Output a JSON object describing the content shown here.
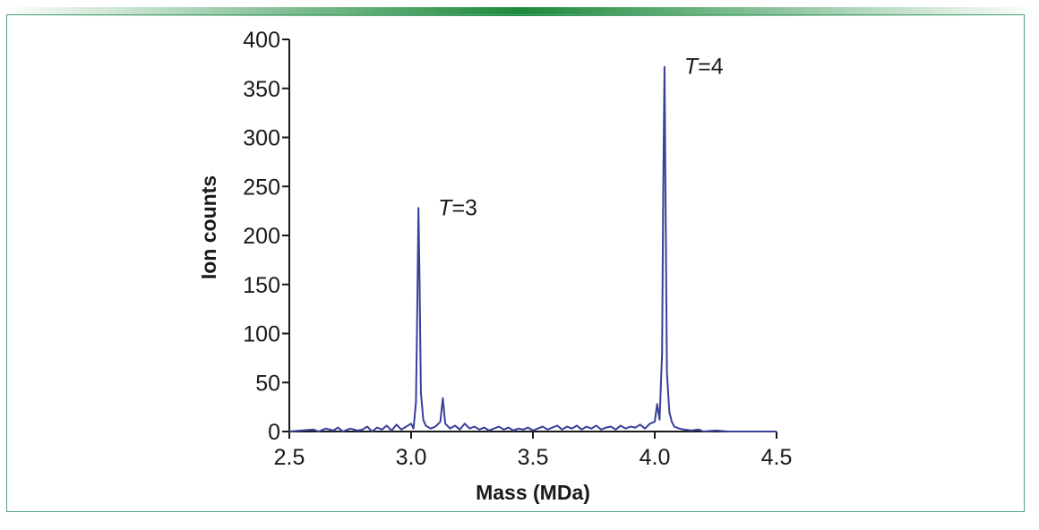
{
  "colors": {
    "frame": "#4fa37a",
    "top_bar_center": "#1e8a3c",
    "top_bar_edge": "#ffffff",
    "series": "#3a3f9a",
    "axis": "#1a1a1a"
  },
  "chart_data": {
    "type": "line",
    "title": "",
    "xlabel": "Mass (MDa)",
    "ylabel": "Ion counts",
    "xlim": [
      2.5,
      4.5
    ],
    "ylim": [
      0,
      400
    ],
    "xticks": [
      "2.5",
      "3.0",
      "3.5",
      "4.0",
      "4.5"
    ],
    "yticks": [
      "0",
      "50",
      "100",
      "150",
      "200",
      "250",
      "300",
      "350",
      "400"
    ],
    "grid": false,
    "legend": "none",
    "annotations": [
      {
        "label_italic": "T",
        "label_rest": "=3",
        "x": 3.03,
        "y": 228
      },
      {
        "label_italic": "T",
        "label_rest": "=4",
        "x": 4.04,
        "y": 372
      }
    ],
    "series": [
      {
        "values_xy": [
          [
            2.5,
            0
          ],
          [
            2.55,
            1
          ],
          [
            2.6,
            2
          ],
          [
            2.62,
            0
          ],
          [
            2.65,
            3
          ],
          [
            2.68,
            1
          ],
          [
            2.7,
            4
          ],
          [
            2.72,
            0
          ],
          [
            2.75,
            3
          ],
          [
            2.78,
            1
          ],
          [
            2.8,
            2
          ],
          [
            2.82,
            5
          ],
          [
            2.84,
            0
          ],
          [
            2.86,
            4
          ],
          [
            2.88,
            2
          ],
          [
            2.9,
            6
          ],
          [
            2.92,
            1
          ],
          [
            2.94,
            7
          ],
          [
            2.96,
            2
          ],
          [
            2.98,
            5
          ],
          [
            3.0,
            8
          ],
          [
            3.01,
            3
          ],
          [
            3.02,
            30
          ],
          [
            3.025,
            120
          ],
          [
            3.03,
            228
          ],
          [
            3.035,
            150
          ],
          [
            3.04,
            40
          ],
          [
            3.05,
            12
          ],
          [
            3.06,
            6
          ],
          [
            3.08,
            3
          ],
          [
            3.1,
            5
          ],
          [
            3.12,
            10
          ],
          [
            3.13,
            34
          ],
          [
            3.14,
            8
          ],
          [
            3.16,
            3
          ],
          [
            3.18,
            6
          ],
          [
            3.2,
            2
          ],
          [
            3.22,
            8
          ],
          [
            3.24,
            3
          ],
          [
            3.26,
            5
          ],
          [
            3.28,
            2
          ],
          [
            3.3,
            4
          ],
          [
            3.32,
            1
          ],
          [
            3.34,
            3
          ],
          [
            3.36,
            5
          ],
          [
            3.38,
            2
          ],
          [
            3.4,
            4
          ],
          [
            3.42,
            1
          ],
          [
            3.44,
            3
          ],
          [
            3.46,
            2
          ],
          [
            3.48,
            4
          ],
          [
            3.5,
            1
          ],
          [
            3.52,
            3
          ],
          [
            3.54,
            5
          ],
          [
            3.56,
            2
          ],
          [
            3.58,
            4
          ],
          [
            3.6,
            6
          ],
          [
            3.62,
            2
          ],
          [
            3.64,
            5
          ],
          [
            3.66,
            3
          ],
          [
            3.68,
            6
          ],
          [
            3.7,
            2
          ],
          [
            3.72,
            5
          ],
          [
            3.74,
            3
          ],
          [
            3.76,
            6
          ],
          [
            3.78,
            2
          ],
          [
            3.8,
            4
          ],
          [
            3.82,
            5
          ],
          [
            3.84,
            2
          ],
          [
            3.86,
            6
          ],
          [
            3.88,
            3
          ],
          [
            3.9,
            5
          ],
          [
            3.92,
            4
          ],
          [
            3.94,
            7
          ],
          [
            3.96,
            3
          ],
          [
            3.98,
            8
          ],
          [
            4.0,
            10
          ],
          [
            4.01,
            28
          ],
          [
            4.02,
            12
          ],
          [
            4.03,
            80
          ],
          [
            4.035,
            250
          ],
          [
            4.04,
            372
          ],
          [
            4.045,
            220
          ],
          [
            4.05,
            60
          ],
          [
            4.06,
            20
          ],
          [
            4.07,
            10
          ],
          [
            4.08,
            5
          ],
          [
            4.1,
            3
          ],
          [
            4.12,
            2
          ],
          [
            4.15,
            1
          ],
          [
            4.18,
            2
          ],
          [
            4.2,
            0
          ],
          [
            4.25,
            1
          ],
          [
            4.3,
            0
          ],
          [
            4.4,
            0
          ],
          [
            4.5,
            0
          ]
        ]
      }
    ]
  }
}
